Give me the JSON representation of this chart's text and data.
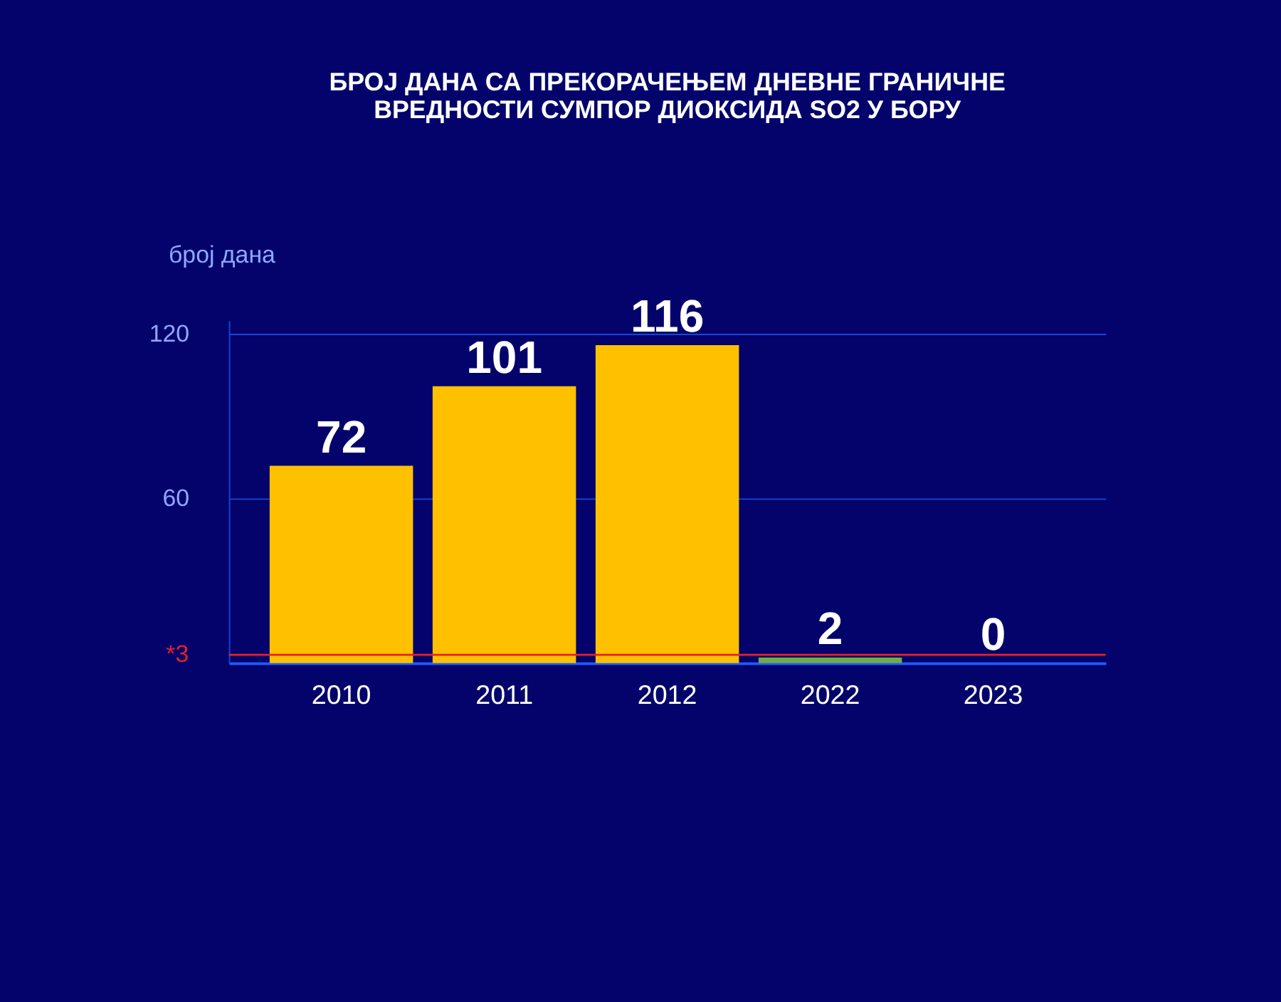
{
  "chart_data": {
    "type": "bar",
    "title": [
      "БРОЈ ДАНА СА ПРЕКОРАЧЕЊЕМ ДНЕВНЕ ГРАНИЧНЕ",
      "ВРЕДНОСТИ СУМПОР ДИОКСИДА SO2 У БОРУ"
    ],
    "ylabel": "број дана",
    "categories": [
      "2010",
      "2011",
      "2012",
      "2022",
      "2023"
    ],
    "values": [
      72,
      101,
      116,
      2,
      0
    ],
    "colors": [
      "#ffc000",
      "#ffc000",
      "#ffc000",
      "#70ad47",
      "#70ad47"
    ],
    "ylim": [
      0,
      125
    ],
    "yticks": [
      60,
      120
    ],
    "grid": "y",
    "data_labels": true,
    "ref_lines": [
      {
        "axis": "y",
        "value": 3,
        "label": "*3",
        "color": "#e8202a"
      }
    ]
  }
}
